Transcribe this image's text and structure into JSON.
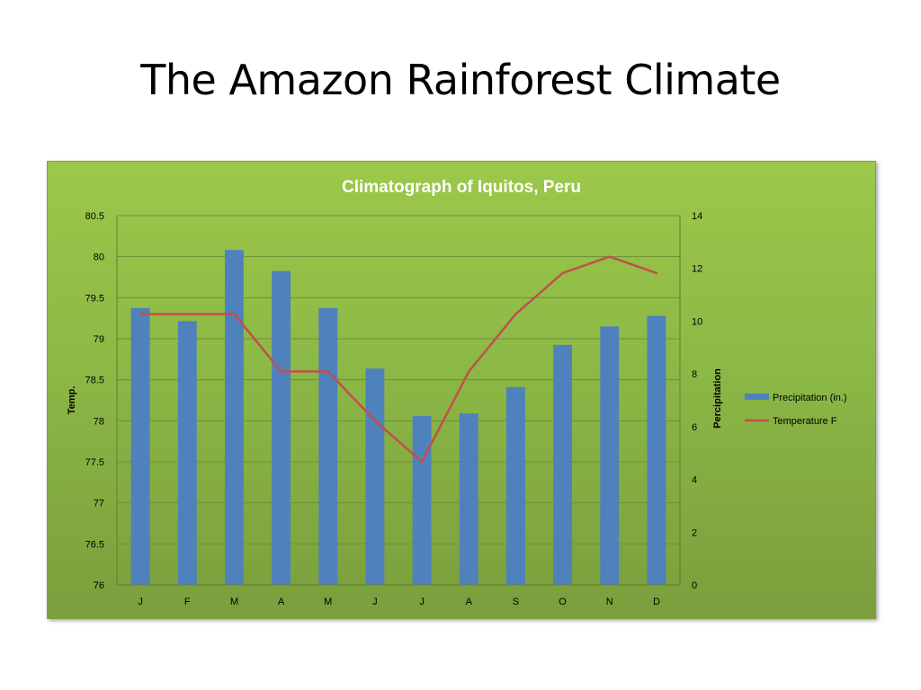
{
  "slide": {
    "title": "The Amazon Rainforest Climate"
  },
  "colors": {
    "plot_background": "#8db945",
    "bar": "#4f81bd",
    "line": "#c0504d",
    "gridline": "#6e8f39",
    "text": "#000000",
    "title_text": "#ffffff"
  },
  "chart_data": {
    "type": "bar+line",
    "title": "Climatograph of Iquitos, Peru",
    "categories": [
      "J",
      "F",
      "M",
      "A",
      "M",
      "J",
      "J",
      "A",
      "S",
      "O",
      "N",
      "D"
    ],
    "y_left": {
      "label": "Temp.",
      "range": [
        76,
        80.5
      ],
      "ticks": [
        "76",
        "76.5",
        "77",
        "77.5",
        "78",
        "78.5",
        "79",
        "79.5",
        "80",
        "80.5"
      ]
    },
    "y_right": {
      "label": "Percipitation",
      "range": [
        0,
        14
      ],
      "ticks": [
        "0",
        "2",
        "4",
        "6",
        "8",
        "10",
        "12",
        "14"
      ]
    },
    "series": [
      {
        "name": "Precipitation (in.)",
        "type": "bar",
        "axis": "right",
        "values": [
          10.5,
          10.0,
          12.7,
          11.9,
          10.5,
          8.2,
          6.4,
          6.5,
          7.5,
          9.1,
          9.8,
          10.2
        ]
      },
      {
        "name": "Temperature F",
        "type": "line",
        "axis": "left",
        "values": [
          79.3,
          79.3,
          79.3,
          78.6,
          78.6,
          78.0,
          77.5,
          78.6,
          79.3,
          79.8,
          80.0,
          79.8
        ]
      }
    ],
    "grid": true,
    "legend_position": "right"
  }
}
